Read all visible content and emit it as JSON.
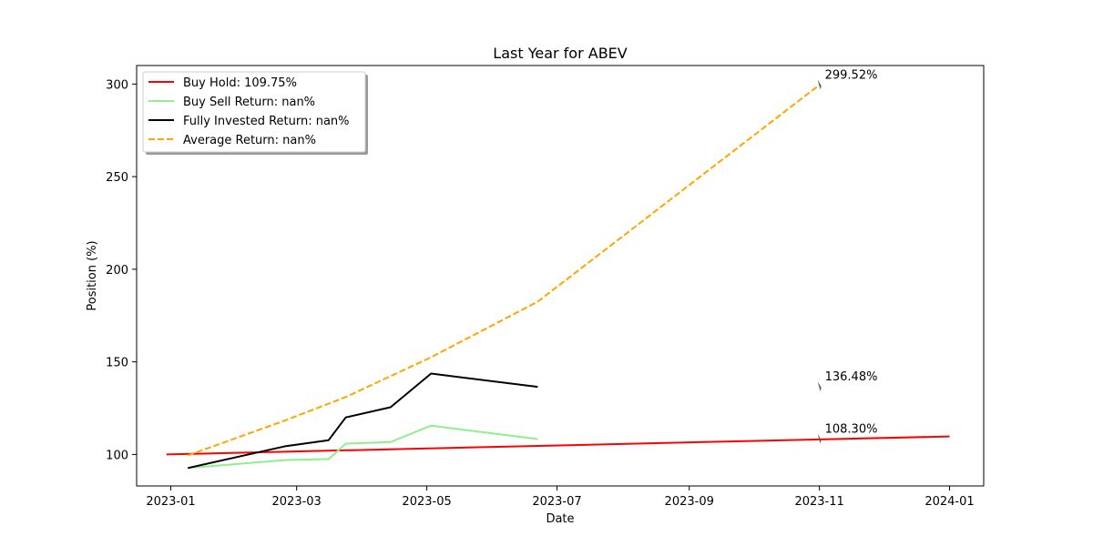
{
  "chart_data": {
    "type": "line",
    "title": "Last Year for ABEV",
    "xlabel": "Date",
    "ylabel": "Position (%)",
    "xlim": [
      "2022-12-16",
      "2024-01-17"
    ],
    "ylim": [
      83,
      310
    ],
    "x_ticks": [
      "2023-01",
      "2023-03",
      "2023-05",
      "2023-07",
      "2023-09",
      "2023-11",
      "2024-01"
    ],
    "y_ticks": [
      100,
      150,
      200,
      250,
      300
    ],
    "grid": false,
    "legend_position": "upper-left",
    "series": [
      {
        "name": "Buy Hold: 109.75%",
        "color": "#ff0000",
        "style": "solid",
        "points": [
          [
            "2022-12-30",
            100.0
          ],
          [
            "2024-01-01",
            109.75
          ]
        ]
      },
      {
        "name": "Buy Sell Return: nan%",
        "color": "#90ee90",
        "style": "solid",
        "points": [
          [
            "2023-01-09",
            92.7
          ],
          [
            "2023-02-24",
            97.0
          ],
          [
            "2023-03-16",
            97.5
          ],
          [
            "2023-03-24",
            105.8
          ],
          [
            "2023-04-14",
            106.7
          ],
          [
            "2023-05-03",
            115.6
          ],
          [
            "2023-06-22",
            108.3
          ]
        ]
      },
      {
        "name": "Fully Invested Return: nan%",
        "color": "#000000",
        "style": "solid",
        "points": [
          [
            "2023-01-09",
            92.7
          ],
          [
            "2023-02-24",
            104.5
          ],
          [
            "2023-03-16",
            107.7
          ],
          [
            "2023-03-24",
            120.0
          ],
          [
            "2023-04-14",
            125.5
          ],
          [
            "2023-05-03",
            143.7
          ],
          [
            "2023-06-22",
            136.5
          ]
        ]
      },
      {
        "name": "Average Return: nan%",
        "color": "#ffa500",
        "style": "dashed",
        "points": [
          [
            "2023-01-09",
            99.5
          ],
          [
            "2023-02-24",
            118.5
          ],
          [
            "2023-03-24",
            131.0
          ],
          [
            "2023-05-03",
            152.5
          ],
          [
            "2023-06-22",
            182.5
          ],
          [
            "2023-11-01",
            299.52
          ]
        ]
      }
    ],
    "annotations": [
      {
        "text": "299.52%",
        "x": "2023-11-01",
        "y": 299.52
      },
      {
        "text": "136.48%",
        "x": "2023-11-01",
        "y": 136.48
      },
      {
        "text": "108.30%",
        "x": "2023-11-01",
        "y": 108.3
      }
    ]
  }
}
